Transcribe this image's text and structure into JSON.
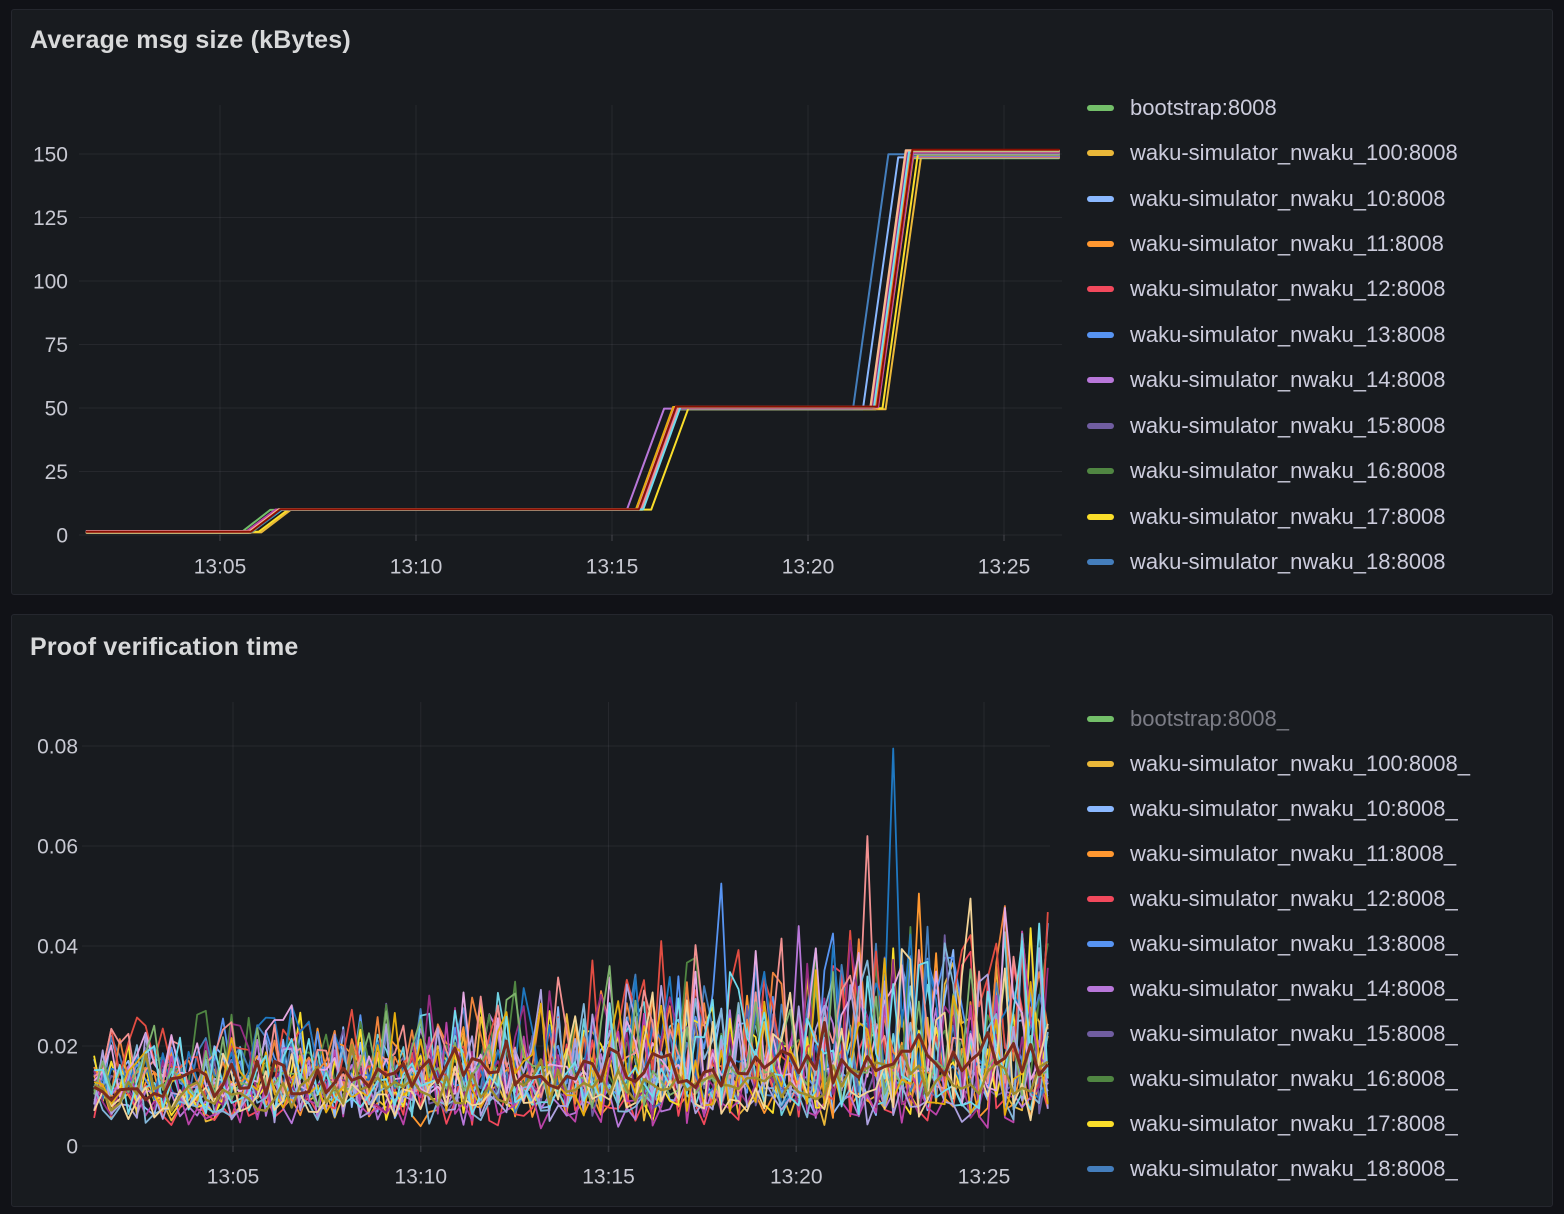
{
  "theme": {
    "page_bg": "#111217",
    "panel_bg": "#181b1f",
    "panel_border": "#25272e",
    "title_text": "#d8d9da",
    "legend_text": "#ccccdc",
    "legend_text_muted": "#7b7c85",
    "axis_text": "#c7c8d1",
    "grid_line": "rgba(204,204,220,0.08)",
    "tick_mark": "rgba(204,204,220,0.16)"
  },
  "panels": [
    {
      "title": "Average msg size (kBytes)",
      "legend": [
        {
          "label": "bootstrap:8008",
          "color": "#73BF69",
          "muted": false
        },
        {
          "label": "waku-simulator_nwaku_100:8008",
          "color": "#EAB839",
          "muted": false
        },
        {
          "label": "waku-simulator_nwaku_10:8008",
          "color": "#8AB8FF",
          "muted": false
        },
        {
          "label": "waku-simulator_nwaku_11:8008",
          "color": "#FF9830",
          "muted": false
        },
        {
          "label": "waku-simulator_nwaku_12:8008",
          "color": "#F2495C",
          "muted": false
        },
        {
          "label": "waku-simulator_nwaku_13:8008",
          "color": "#5794F2",
          "muted": false
        },
        {
          "label": "waku-simulator_nwaku_14:8008",
          "color": "#B877D9",
          "muted": false
        },
        {
          "label": "waku-simulator_nwaku_15:8008",
          "color": "#705DA0",
          "muted": false
        },
        {
          "label": "waku-simulator_nwaku_16:8008",
          "color": "#508642",
          "muted": false
        },
        {
          "label": "waku-simulator_nwaku_17:8008",
          "color": "#FADE2A",
          "muted": false
        },
        {
          "label": "waku-simulator_nwaku_18:8008",
          "color": "#447EBC",
          "muted": false
        }
      ],
      "chart_data": {
        "type": "line",
        "title": "Average msg size (kBytes)",
        "xlabel": "",
        "ylabel": "",
        "unit": "kBytes",
        "grid": true,
        "legend_position": "right",
        "x_ticks": [
          "13:05",
          "13:10",
          "13:15",
          "13:20",
          "13:25"
        ],
        "x_range": [
          "13:01.6",
          "13:26.4"
        ],
        "y_ticks": [
          0,
          25,
          50,
          75,
          100,
          125,
          150
        ],
        "ylim": [
          0,
          170
        ],
        "description": "All node series overlap on a step profile: ~1 kB until 13:06, 10 kB until ~13:16, 50 kB until ~13:22, then 150 kB to the end",
        "step_profile": [
          {
            "t": "13:01.6",
            "v": 0.9
          },
          {
            "t": "13:05.75",
            "v": 0.9
          },
          {
            "t": "13:06.5",
            "v": 10
          },
          {
            "t": "13:15.7",
            "v": 10
          },
          {
            "t": "13:16.65",
            "v": 50
          },
          {
            "t": "13:21.7",
            "v": 50
          },
          {
            "t": "13:22.6",
            "v": 150
          },
          {
            "t": "13:26.4",
            "v": 150
          }
        ],
        "series_colors": [
          "#73BF69",
          "#EAB839",
          "#8AB8FF",
          "#FF9830",
          "#F2495C",
          "#5794F2",
          "#B877D9",
          "#705DA0",
          "#508642",
          "#FADE2A",
          "#447EBC",
          "#6ED0E0",
          "#EF843C",
          "#E24D42",
          "#1F78C1",
          "#BA43A9",
          "#962D82",
          "#F29191",
          "#E5AC0E",
          "#70DBED",
          "#F9BA8F",
          "#890F02"
        ],
        "ramp_offsets": [
          {
            "color": "#73BF69",
            "ramp": 0,
            "offset_min": -0.22
          },
          {
            "color": "#EAB839",
            "ramp": 0,
            "offset_min": 0.3
          },
          {
            "color": "#FADE2A",
            "ramp": 0,
            "offset_min": 0.24
          },
          {
            "color": "#B877D9",
            "ramp": 1,
            "offset_min": -0.32
          },
          {
            "color": "#FADE2A",
            "ramp": 1,
            "offset_min": 0.3
          },
          {
            "color": "#447EBC",
            "ramp": 2,
            "offset_min": -0.55
          },
          {
            "color": "#8AB8FF",
            "ramp": 2,
            "offset_min": -0.3
          },
          {
            "color": "#EAB839",
            "ramp": 2,
            "offset_min": 0.28
          },
          {
            "color": "#FADE2A",
            "ramp": 2,
            "offset_min": 0.2
          }
        ],
        "jitter_seed": 11
      }
    },
    {
      "title": "Proof verification time",
      "legend": [
        {
          "label": "bootstrap:8008_",
          "color": "#73BF69",
          "muted": true
        },
        {
          "label": "waku-simulator_nwaku_100:8008_",
          "color": "#EAB839",
          "muted": false
        },
        {
          "label": "waku-simulator_nwaku_10:8008_",
          "color": "#8AB8FF",
          "muted": false
        },
        {
          "label": "waku-simulator_nwaku_11:8008_",
          "color": "#FF9830",
          "muted": false
        },
        {
          "label": "waku-simulator_nwaku_12:8008_",
          "color": "#F2495C",
          "muted": false
        },
        {
          "label": "waku-simulator_nwaku_13:8008_",
          "color": "#5794F2",
          "muted": false
        },
        {
          "label": "waku-simulator_nwaku_14:8008_",
          "color": "#B877D9",
          "muted": false
        },
        {
          "label": "waku-simulator_nwaku_15:8008_",
          "color": "#705DA0",
          "muted": false
        },
        {
          "label": "waku-simulator_nwaku_16:8008_",
          "color": "#508642",
          "muted": false
        },
        {
          "label": "waku-simulator_nwaku_17:8008_",
          "color": "#FADE2A",
          "muted": false
        },
        {
          "label": "waku-simulator_nwaku_18:8008_",
          "color": "#447EBC",
          "muted": false
        }
      ],
      "chart_data": {
        "type": "line",
        "title": "Proof verification time",
        "xlabel": "",
        "ylabel": "",
        "grid": true,
        "legend_position": "right",
        "x_ticks": [
          "13:05",
          "13:10",
          "13:15",
          "13:20",
          "13:25"
        ],
        "x_range": [
          "13:01.3",
          "13:26.7"
        ],
        "y_ticks": [
          0,
          0.02,
          0.04,
          0.06,
          0.08
        ],
        "ylim": [
          0,
          0.089
        ],
        "description": "Many overlapping noisy series oscillating between ~0.004 and ~0.025 early, spike amplitude grows after 13:15 reaching ~0.05; a bold dark-red and an olive series track ~0.010-0.020 throughout",
        "points_per_series": 112,
        "noise": {
          "seed": 1337,
          "base_min": 0.006,
          "base_max": 0.013,
          "spike_amp_start": 0.012,
          "spike_amp_end": 0.038,
          "value_floor": 0.0035,
          "cap_start": 0.026,
          "cap_end": 0.05
        },
        "series": [
          {
            "color": "#EAB839",
            "width": 1.8
          },
          {
            "color": "#8AB8FF",
            "width": 1.8
          },
          {
            "color": "#FF9830",
            "width": 1.8
          },
          {
            "color": "#F2495C",
            "width": 1.8
          },
          {
            "color": "#5794F2",
            "width": 1.8
          },
          {
            "color": "#B877D9",
            "width": 1.8
          },
          {
            "color": "#705DA0",
            "width": 1.8
          },
          {
            "color": "#508642",
            "width": 1.8
          },
          {
            "color": "#FADE2A",
            "width": 1.8
          },
          {
            "color": "#447EBC",
            "width": 1.8
          },
          {
            "color": "#6ED0E0",
            "width": 1.8
          },
          {
            "color": "#EF843C",
            "width": 1.8
          },
          {
            "color": "#E24D42",
            "width": 1.8
          },
          {
            "color": "#1F78C1",
            "width": 1.8
          },
          {
            "color": "#BA43A9",
            "width": 1.8
          },
          {
            "color": "#962D82",
            "width": 1.8
          },
          {
            "color": "#F29191",
            "width": 1.8
          },
          {
            "color": "#82B5D8",
            "width": 1.8
          },
          {
            "color": "#E5A8E2",
            "width": 1.8
          },
          {
            "color": "#AEA2E0",
            "width": 1.8
          },
          {
            "color": "#7EB26D",
            "width": 1.8
          },
          {
            "color": "#E5AC0E",
            "width": 1.8
          },
          {
            "color": "#70DBED",
            "width": 1.8
          },
          {
            "color": "#F4D598",
            "width": 1.8
          },
          {
            "color": "#9C8B2F",
            "width": 2.4
          },
          {
            "color": "#7A2B1F",
            "width": 3
          }
        ],
        "notable_spikes": [
          {
            "t": "13:22.6",
            "v": 0.0795,
            "color": "#1F78C1"
          },
          {
            "t": "13:21.8",
            "v": 0.062,
            "color": "#F29191"
          },
          {
            "t": "13:18.05",
            "v": 0.0525,
            "color": "#5794F2"
          },
          {
            "t": "13:23.35",
            "v": 0.0505,
            "color": "#FF9830"
          },
          {
            "t": "13:24.7",
            "v": 0.0495,
            "color": "#F4D598"
          },
          {
            "t": "13:25.55",
            "v": 0.048,
            "color": "#EF843C"
          },
          {
            "t": "13:20.1",
            "v": 0.044,
            "color": "#B877D9"
          },
          {
            "t": "13:16.4",
            "v": 0.041,
            "color": "#E24D42"
          },
          {
            "t": "13:26.0",
            "v": 0.041,
            "color": "#70DBED"
          }
        ]
      }
    }
  ]
}
